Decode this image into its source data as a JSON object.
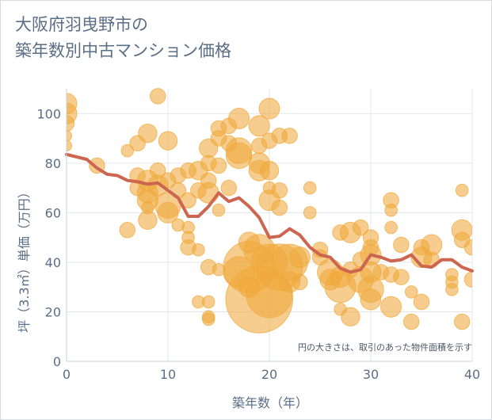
{
  "title": "大阪府羽曳野市の\n築年数別中古マンション価格",
  "note": "円の大きさは、取引のあった物件面積を示す",
  "colors": {
    "bubble": "#f0a93c",
    "line": "#cc6651",
    "text": "#5a6e86",
    "grid": "#e3e7ec"
  },
  "chart_data": {
    "type": "scatter",
    "xlabel": "築年数（年）",
    "ylabel": "坪（3.3㎡）単価（万円）",
    "xlim": [
      0,
      40
    ],
    "ylim": [
      0,
      110
    ],
    "xticks": [
      0,
      10,
      20,
      30,
      40
    ],
    "yticks": [
      0,
      20,
      40,
      60,
      80,
      100
    ],
    "grid": true,
    "trend": {
      "x": [
        0,
        1,
        2,
        3,
        4,
        5,
        6,
        7,
        8,
        9,
        10,
        11,
        12,
        13,
        14,
        15,
        16,
        17,
        18,
        19,
        20,
        21,
        22,
        23,
        24,
        25,
        26,
        27,
        28,
        29,
        30,
        31,
        32,
        33,
        34,
        35,
        36,
        37,
        38,
        39,
        40
      ],
      "y": [
        83.5,
        82.5,
        81.5,
        78,
        75.5,
        75,
        73,
        72.5,
        71.5,
        72,
        69,
        66,
        58.5,
        58.5,
        62.5,
        68,
        64.5,
        66,
        62.5,
        58,
        50,
        50.5,
        53.5,
        51,
        46,
        43,
        42,
        37.5,
        36,
        37,
        43,
        42,
        40.5,
        41,
        43,
        38.5,
        38,
        41,
        41,
        38,
        36.5
      ]
    },
    "bubbles": [
      {
        "x": 0,
        "y": 104,
        "s": 2
      },
      {
        "x": 0,
        "y": 100,
        "s": 2
      },
      {
        "x": 0,
        "y": 96,
        "s": 1.5
      },
      {
        "x": 0,
        "y": 91,
        "s": 1
      },
      {
        "x": 0,
        "y": 87,
        "s": 1
      },
      {
        "x": 3,
        "y": 79,
        "s": 1.5
      },
      {
        "x": 6,
        "y": 85,
        "s": 1.2
      },
      {
        "x": 6,
        "y": 53,
        "s": 1.5
      },
      {
        "x": 7,
        "y": 88,
        "s": 1.5
      },
      {
        "x": 7,
        "y": 75,
        "s": 1.5
      },
      {
        "x": 7,
        "y": 70,
        "s": 1.5
      },
      {
        "x": 8,
        "y": 92,
        "s": 1.8
      },
      {
        "x": 8,
        "y": 73,
        "s": 2
      },
      {
        "x": 8,
        "y": 68,
        "s": 2
      },
      {
        "x": 8,
        "y": 65,
        "s": 2
      },
      {
        "x": 8,
        "y": 57,
        "s": 1.8
      },
      {
        "x": 8,
        "y": 62,
        "s": 1.2
      },
      {
        "x": 9,
        "y": 107,
        "s": 1.5
      },
      {
        "x": 9,
        "y": 77,
        "s": 1.5
      },
      {
        "x": 9,
        "y": 71,
        "s": 2
      },
      {
        "x": 10,
        "y": 89,
        "s": 1.8
      },
      {
        "x": 10,
        "y": 63,
        "s": 2.5
      },
      {
        "x": 10,
        "y": 60,
        "s": 2
      },
      {
        "x": 10,
        "y": 73,
        "s": 1.5
      },
      {
        "x": 11,
        "y": 75,
        "s": 1.5
      },
      {
        "x": 11,
        "y": 69,
        "s": 1.5
      },
      {
        "x": 11,
        "y": 55,
        "s": 1.2
      },
      {
        "x": 12,
        "y": 77,
        "s": 1.5
      },
      {
        "x": 12,
        "y": 65,
        "s": 1.5
      },
      {
        "x": 12,
        "y": 54,
        "s": 1.2
      },
      {
        "x": 12,
        "y": 50,
        "s": 1.2
      },
      {
        "x": 12,
        "y": 46,
        "s": 1.5
      },
      {
        "x": 13,
        "y": 77,
        "s": 1.8
      },
      {
        "x": 13,
        "y": 69,
        "s": 1.5
      },
      {
        "x": 13,
        "y": 45,
        "s": 1.2
      },
      {
        "x": 13,
        "y": 24,
        "s": 1.2
      },
      {
        "x": 14,
        "y": 86,
        "s": 1.8
      },
      {
        "x": 14,
        "y": 80,
        "s": 1.5
      },
      {
        "x": 14,
        "y": 73,
        "s": 1.5
      },
      {
        "x": 14,
        "y": 68,
        "s": 2
      },
      {
        "x": 14,
        "y": 38,
        "s": 1.5
      },
      {
        "x": 14,
        "y": 24,
        "s": 1.2
      },
      {
        "x": 14,
        "y": 18,
        "s": 1.2
      },
      {
        "x": 14,
        "y": 17,
        "s": 1.2
      },
      {
        "x": 15,
        "y": 94,
        "s": 1.5
      },
      {
        "x": 15,
        "y": 90,
        "s": 1.5
      },
      {
        "x": 15,
        "y": 79,
        "s": 1.5
      },
      {
        "x": 15,
        "y": 61,
        "s": 1.2
      },
      {
        "x": 15,
        "y": 37,
        "s": 1.2
      },
      {
        "x": 16,
        "y": 95,
        "s": 1.5
      },
      {
        "x": 16,
        "y": 88,
        "s": 1.5
      },
      {
        "x": 16,
        "y": 70,
        "s": 1.5
      },
      {
        "x": 17,
        "y": 98,
        "s": 2
      },
      {
        "x": 17,
        "y": 85,
        "s": 2.5
      },
      {
        "x": 17,
        "y": 83,
        "s": 2.5
      },
      {
        "x": 17,
        "y": 36,
        "s": 3
      },
      {
        "x": 18,
        "y": 38,
        "s": 5
      },
      {
        "x": 18,
        "y": 48,
        "s": 2
      },
      {
        "x": 18,
        "y": 30,
        "s": 2
      },
      {
        "x": 19,
        "y": 25,
        "s": 6.5
      },
      {
        "x": 19,
        "y": 95,
        "s": 2
      },
      {
        "x": 19,
        "y": 87,
        "s": 1.5
      },
      {
        "x": 19,
        "y": 80,
        "s": 2
      },
      {
        "x": 19,
        "y": 77,
        "s": 2
      },
      {
        "x": 19,
        "y": 45,
        "s": 3
      },
      {
        "x": 20,
        "y": 27,
        "s": 4.5
      },
      {
        "x": 20,
        "y": 102,
        "s": 2
      },
      {
        "x": 20,
        "y": 89,
        "s": 1.5
      },
      {
        "x": 20,
        "y": 77,
        "s": 1.8
      },
      {
        "x": 20,
        "y": 70,
        "s": 1.2
      },
      {
        "x": 20,
        "y": 65,
        "s": 2
      },
      {
        "x": 20,
        "y": 40,
        "s": 3.5
      },
      {
        "x": 21,
        "y": 91,
        "s": 1.5
      },
      {
        "x": 21,
        "y": 69,
        "s": 1.5
      },
      {
        "x": 21,
        "y": 62,
        "s": 1.5
      },
      {
        "x": 21,
        "y": 38,
        "s": 4.5
      },
      {
        "x": 22,
        "y": 40,
        "s": 3.5
      },
      {
        "x": 22,
        "y": 91,
        "s": 1.5
      },
      {
        "x": 22,
        "y": 32,
        "s": 2
      },
      {
        "x": 23,
        "y": 42,
        "s": 2
      },
      {
        "x": 23,
        "y": 32,
        "s": 1.5
      },
      {
        "x": 24,
        "y": 70,
        "s": 1.2
      },
      {
        "x": 24,
        "y": 60,
        "s": 1.2
      },
      {
        "x": 25,
        "y": 45,
        "s": 1.5
      },
      {
        "x": 25,
        "y": 42,
        "s": 1.5
      },
      {
        "x": 26,
        "y": 36,
        "s": 2.5
      },
      {
        "x": 26,
        "y": 33,
        "s": 2
      },
      {
        "x": 27,
        "y": 30,
        "s": 3
      },
      {
        "x": 27,
        "y": 34,
        "s": 2
      },
      {
        "x": 27,
        "y": 52,
        "s": 1.5
      },
      {
        "x": 27,
        "y": 21,
        "s": 1.2
      },
      {
        "x": 28,
        "y": 18,
        "s": 1.8
      },
      {
        "x": 28,
        "y": 37,
        "s": 1.5
      },
      {
        "x": 28,
        "y": 52,
        "s": 2
      },
      {
        "x": 29,
        "y": 54,
        "s": 1.5
      },
      {
        "x": 29,
        "y": 41,
        "s": 1.5
      },
      {
        "x": 29,
        "y": 33,
        "s": 2.5
      },
      {
        "x": 30,
        "y": 50,
        "s": 1.5
      },
      {
        "x": 30,
        "y": 46,
        "s": 1.5
      },
      {
        "x": 30,
        "y": 43,
        "s": 2
      },
      {
        "x": 30,
        "y": 36,
        "s": 2
      },
      {
        "x": 30,
        "y": 29,
        "s": 2.5
      },
      {
        "x": 30,
        "y": 25,
        "s": 2
      },
      {
        "x": 31,
        "y": 36,
        "s": 1.5
      },
      {
        "x": 32,
        "y": 65,
        "s": 1.5
      },
      {
        "x": 32,
        "y": 61,
        "s": 1.2
      },
      {
        "x": 32,
        "y": 54,
        "s": 1.2
      },
      {
        "x": 32,
        "y": 35,
        "s": 1.5
      },
      {
        "x": 32,
        "y": 22,
        "s": 2
      },
      {
        "x": 33,
        "y": 47,
        "s": 1.5
      },
      {
        "x": 33,
        "y": 34,
        "s": 1.5
      },
      {
        "x": 34,
        "y": 28,
        "s": 1.2
      },
      {
        "x": 34,
        "y": 16,
        "s": 1.5
      },
      {
        "x": 35,
        "y": 46,
        "s": 1.5
      },
      {
        "x": 35,
        "y": 42,
        "s": 2
      },
      {
        "x": 35,
        "y": 24,
        "s": 1.5
      },
      {
        "x": 36,
        "y": 47,
        "s": 2
      },
      {
        "x": 36,
        "y": 41,
        "s": 1.5
      },
      {
        "x": 38,
        "y": 35,
        "s": 1.2
      },
      {
        "x": 38,
        "y": 32,
        "s": 1.2
      },
      {
        "x": 38,
        "y": 29,
        "s": 1.2
      },
      {
        "x": 39,
        "y": 69,
        "s": 1.2
      },
      {
        "x": 39,
        "y": 53,
        "s": 2
      },
      {
        "x": 39,
        "y": 49,
        "s": 1.5
      },
      {
        "x": 39,
        "y": 16,
        "s": 1.5
      },
      {
        "x": 40,
        "y": 46,
        "s": 1.5
      },
      {
        "x": 40,
        "y": 33,
        "s": 1.5
      }
    ]
  }
}
